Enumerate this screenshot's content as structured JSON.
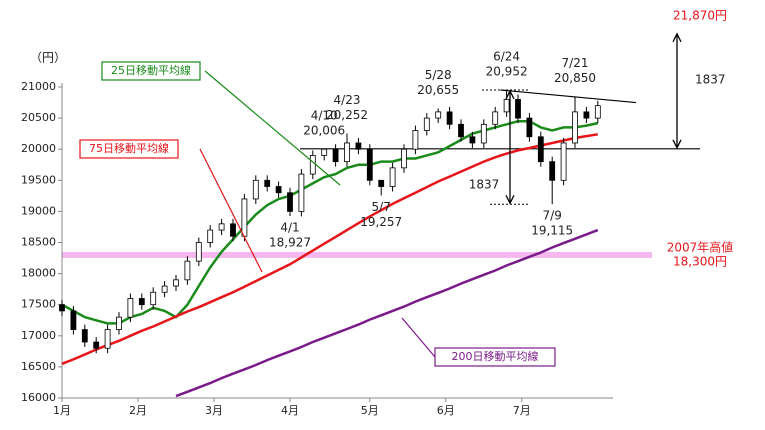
{
  "chart_data": {
    "type": "candlestick",
    "y_label": "（円）",
    "xlim": [
      0,
      145
    ],
    "ylim": [
      16000,
      21000
    ],
    "xticks": [
      {
        "value": 0,
        "label": "1月"
      },
      {
        "value": 20,
        "label": "2月"
      },
      {
        "value": 40,
        "label": "3月"
      },
      {
        "value": 60,
        "label": "4月"
      },
      {
        "value": 81,
        "label": "5月"
      },
      {
        "value": 101,
        "label": "6月"
      },
      {
        "value": 121,
        "label": "7月"
      }
    ],
    "yticks": [
      16000,
      16500,
      17000,
      17500,
      18000,
      18500,
      19000,
      19500,
      20000,
      20500,
      21000
    ],
    "x": [
      0,
      3,
      6,
      9,
      12,
      15,
      18,
      21,
      24,
      27,
      30,
      33,
      36,
      39,
      42,
      45,
      48,
      51,
      54,
      57,
      60,
      63,
      66,
      69,
      72,
      75,
      78,
      81,
      84,
      87,
      90,
      93,
      96,
      99,
      102,
      105,
      108,
      111,
      114,
      117,
      120,
      123,
      126,
      129,
      132,
      135,
      138,
      141
    ],
    "open": [
      17500,
      17400,
      17100,
      16900,
      16800,
      17100,
      17300,
      17600,
      17500,
      17700,
      17800,
      17900,
      18200,
      18500,
      18700,
      18800,
      18600,
      19200,
      19500,
      19400,
      19300,
      19000,
      19600,
      19900,
      20000,
      19800,
      20100,
      20000,
      19500,
      19400,
      19700,
      20000,
      20300,
      20500,
      20600,
      20400,
      20200,
      20100,
      20400,
      20600,
      20800,
      20500,
      20200,
      19800,
      19500,
      20100,
      20600,
      20500
    ],
    "high": [
      17580,
      17480,
      17180,
      16980,
      17180,
      17380,
      17680,
      17680,
      17780,
      17880,
      17980,
      18280,
      18580,
      18780,
      18880,
      18880,
      19280,
      19580,
      19580,
      19480,
      19380,
      19680,
      19980,
      20006,
      20080,
      20252,
      20180,
      20080,
      19480,
      19780,
      20080,
      20380,
      20580,
      20655,
      20680,
      20480,
      20280,
      20480,
      20680,
      20952,
      20880,
      20580,
      20280,
      19880,
      20180,
      20850,
      20680,
      20780
    ],
    "low": [
      17320,
      17020,
      16820,
      16720,
      16720,
      17020,
      17220,
      17420,
      17420,
      17620,
      17720,
      17820,
      18120,
      18420,
      18620,
      18520,
      18520,
      19120,
      19320,
      19220,
      18927,
      18920,
      19520,
      19820,
      19720,
      19720,
      19920,
      19420,
      19257,
      19320,
      19620,
      19920,
      20220,
      20420,
      20320,
      20120,
      20020,
      20020,
      20320,
      20520,
      20420,
      20120,
      19720,
      19115,
      19420,
      20020,
      20420,
      20420
    ],
    "close": [
      17400,
      17100,
      16900,
      16800,
      17100,
      17300,
      17600,
      17500,
      17700,
      17800,
      17900,
      18200,
      18500,
      18700,
      18800,
      18600,
      19200,
      19500,
      19400,
      19300,
      19000,
      19600,
      19900,
      20000,
      19800,
      20100,
      20000,
      19500,
      19400,
      19700,
      20000,
      20300,
      20500,
      20600,
      20400,
      20200,
      20100,
      20400,
      20600,
      20800,
      20500,
      20200,
      19800,
      19500,
      20100,
      20600,
      20500,
      20700
    ],
    "series": [
      {
        "name": "25日移動平均線",
        "color": "#1a8a1a",
        "values": [
          17500,
          17400,
          17300,
          17250,
          17200,
          17200,
          17300,
          17350,
          17450,
          17400,
          17300,
          17500,
          17800,
          18100,
          18350,
          18550,
          18750,
          18950,
          19100,
          19200,
          19250,
          19350,
          19450,
          19550,
          19600,
          19700,
          19750,
          19750,
          19800,
          19800,
          19850,
          19850,
          19900,
          19950,
          20050,
          20150,
          20250,
          20300,
          20350,
          20400,
          20450,
          20450,
          20350,
          20300,
          20350,
          20350,
          20380,
          20420
        ]
      },
      {
        "name": "75日移動平均線",
        "color": "#e8141a",
        "values": [
          16550,
          16620,
          16700,
          16780,
          16850,
          16920,
          17000,
          17080,
          17150,
          17230,
          17310,
          17390,
          17460,
          17540,
          17620,
          17700,
          17790,
          17880,
          17970,
          18060,
          18150,
          18260,
          18370,
          18480,
          18590,
          18700,
          18810,
          18920,
          19020,
          19120,
          19210,
          19300,
          19390,
          19480,
          19560,
          19640,
          19720,
          19800,
          19870,
          19930,
          19980,
          20020,
          20060,
          20100,
          20140,
          20180,
          20210,
          20240
        ]
      },
      {
        "name": "200日移動平均線",
        "color": "#7a1a8a",
        "values": [
          null,
          null,
          null,
          null,
          null,
          null,
          null,
          null,
          null,
          null,
          16030,
          16100,
          16170,
          16240,
          16320,
          16390,
          16460,
          16530,
          16610,
          16680,
          16750,
          16820,
          16900,
          16970,
          17040,
          17110,
          17180,
          17260,
          17330,
          17400,
          17470,
          17550,
          17620,
          17690,
          17760,
          17840,
          17910,
          17980,
          18050,
          18130,
          18200,
          18270,
          18340,
          18420,
          18490,
          18560,
          18630,
          18700
        ]
      }
    ],
    "annotations": [
      {
        "date": "4/1",
        "value": 18927,
        "label": "18,927"
      },
      {
        "date": "4/10",
        "value": 20006,
        "label": "20,006"
      },
      {
        "date": "4/23",
        "value": 20252,
        "label": "20,252"
      },
      {
        "date": "5/7",
        "value": 19257,
        "label": "19,257"
      },
      {
        "date": "5/28",
        "value": 20655,
        "label": "20,655"
      },
      {
        "date": "6/24",
        "value": 20952,
        "label": "20,952"
      },
      {
        "date": "7/9",
        "value": 19115,
        "label": "19,115"
      },
      {
        "date": "7/21",
        "value": 20850,
        "label": "20,850"
      }
    ],
    "reference": {
      "label": "2007年高値",
      "value": 18300,
      "value_label": "18,300円"
    },
    "target": {
      "value": 21870,
      "label": "21,870円"
    },
    "ranges": [
      1837,
      1837
    ]
  }
}
